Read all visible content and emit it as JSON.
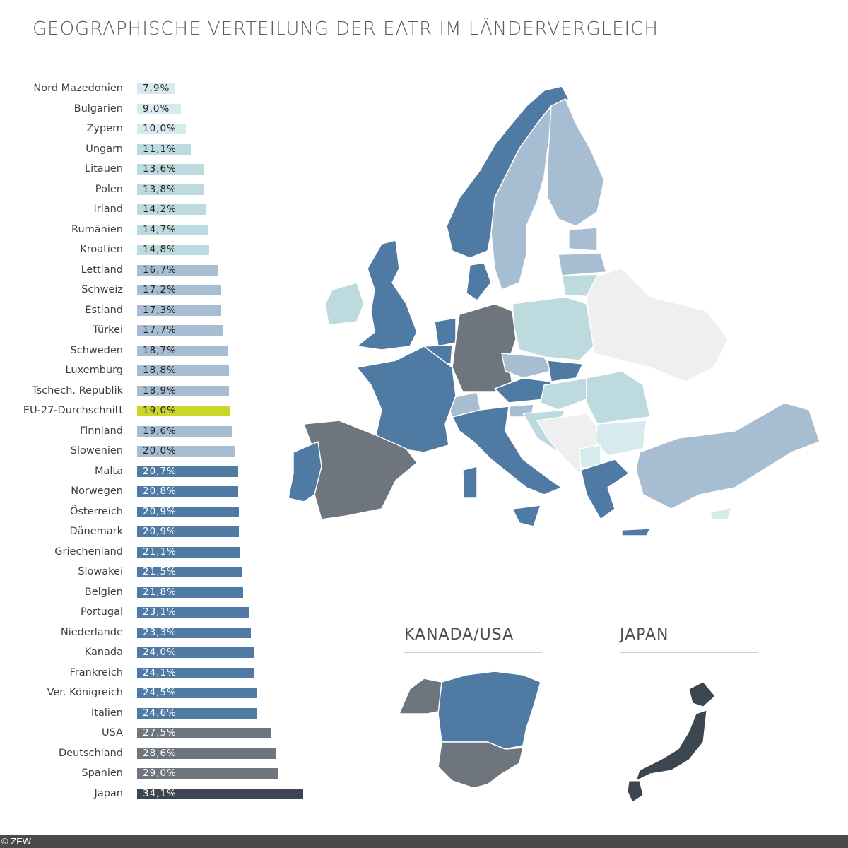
{
  "chart_data": {
    "type": "bar",
    "orientation": "horizontal",
    "title": "GEOGRAPHISCHE VERTEILUNG DER EATR IM LÄNDERVERGLEICH",
    "xlim": [
      0,
      34.1
    ],
    "categories": [
      "Nord Mazedonien",
      "Bulgarien",
      "Zypern",
      "Ungarn",
      "Litauen",
      "Polen",
      "Irland",
      "Rumänien",
      "Kroatien",
      "Lettland",
      "Schweiz",
      "Estland",
      "Türkei",
      "Schweden",
      "Luxemburg",
      "Tschech. Republik",
      "EU-27-Durchschnitt",
      "Finnland",
      "Slowenien",
      "Malta",
      "Norwegen",
      "Österreich",
      "Dänemark",
      "Griechenland",
      "Slowakei",
      "Belgien",
      "Portugal",
      "Niederlande",
      "Kanada",
      "Frankreich",
      "Ver. Königreich",
      "Italien",
      "USA",
      "Deutschland",
      "Spanien",
      "Japan"
    ],
    "values": [
      7.9,
      9.0,
      10.0,
      11.1,
      13.6,
      13.8,
      14.2,
      14.7,
      14.8,
      16.7,
      17.2,
      17.3,
      17.7,
      18.7,
      18.8,
      18.9,
      19.0,
      19.6,
      20.0,
      20.7,
      20.8,
      20.9,
      20.9,
      21.1,
      21.5,
      21.8,
      23.1,
      23.3,
      24.0,
      24.1,
      24.5,
      24.6,
      27.5,
      28.6,
      29.0,
      34.1
    ],
    "value_labels": [
      "7,9%",
      "9,0%",
      "10,0%",
      "11,1%",
      "13,6%",
      "13,8%",
      "14,2%",
      "14,7%",
      "14,8%",
      "16,7%",
      "17,2%",
      "17,3%",
      "17,7%",
      "18,7%",
      "18,8%",
      "18,9%",
      "19,0%",
      "19,6%",
      "20,0%",
      "20,7%",
      "20,8%",
      "20,9%",
      "20,9%",
      "21,1%",
      "21,5%",
      "21,8%",
      "23,1%",
      "23,3%",
      "24,0%",
      "24,1%",
      "24,5%",
      "24,6%",
      "27,5%",
      "28,6%",
      "29,0%",
      "34,1%"
    ],
    "colors": {
      "very_light": "#d7eaee",
      "light_teal": "#bddbdf",
      "light_blue": "#a7bdd1",
      "blue": "#4f7aa3",
      "grey": "#6f757d",
      "dark": "#3c4651",
      "highlight": "#cbd62b",
      "no_data": "#efefef"
    },
    "highlight_category": "EU-27-Durchschnitt"
  },
  "insets": {
    "north_america_title": "KANADA/USA",
    "japan_title": "JAPAN"
  },
  "footer": "© ZEW"
}
